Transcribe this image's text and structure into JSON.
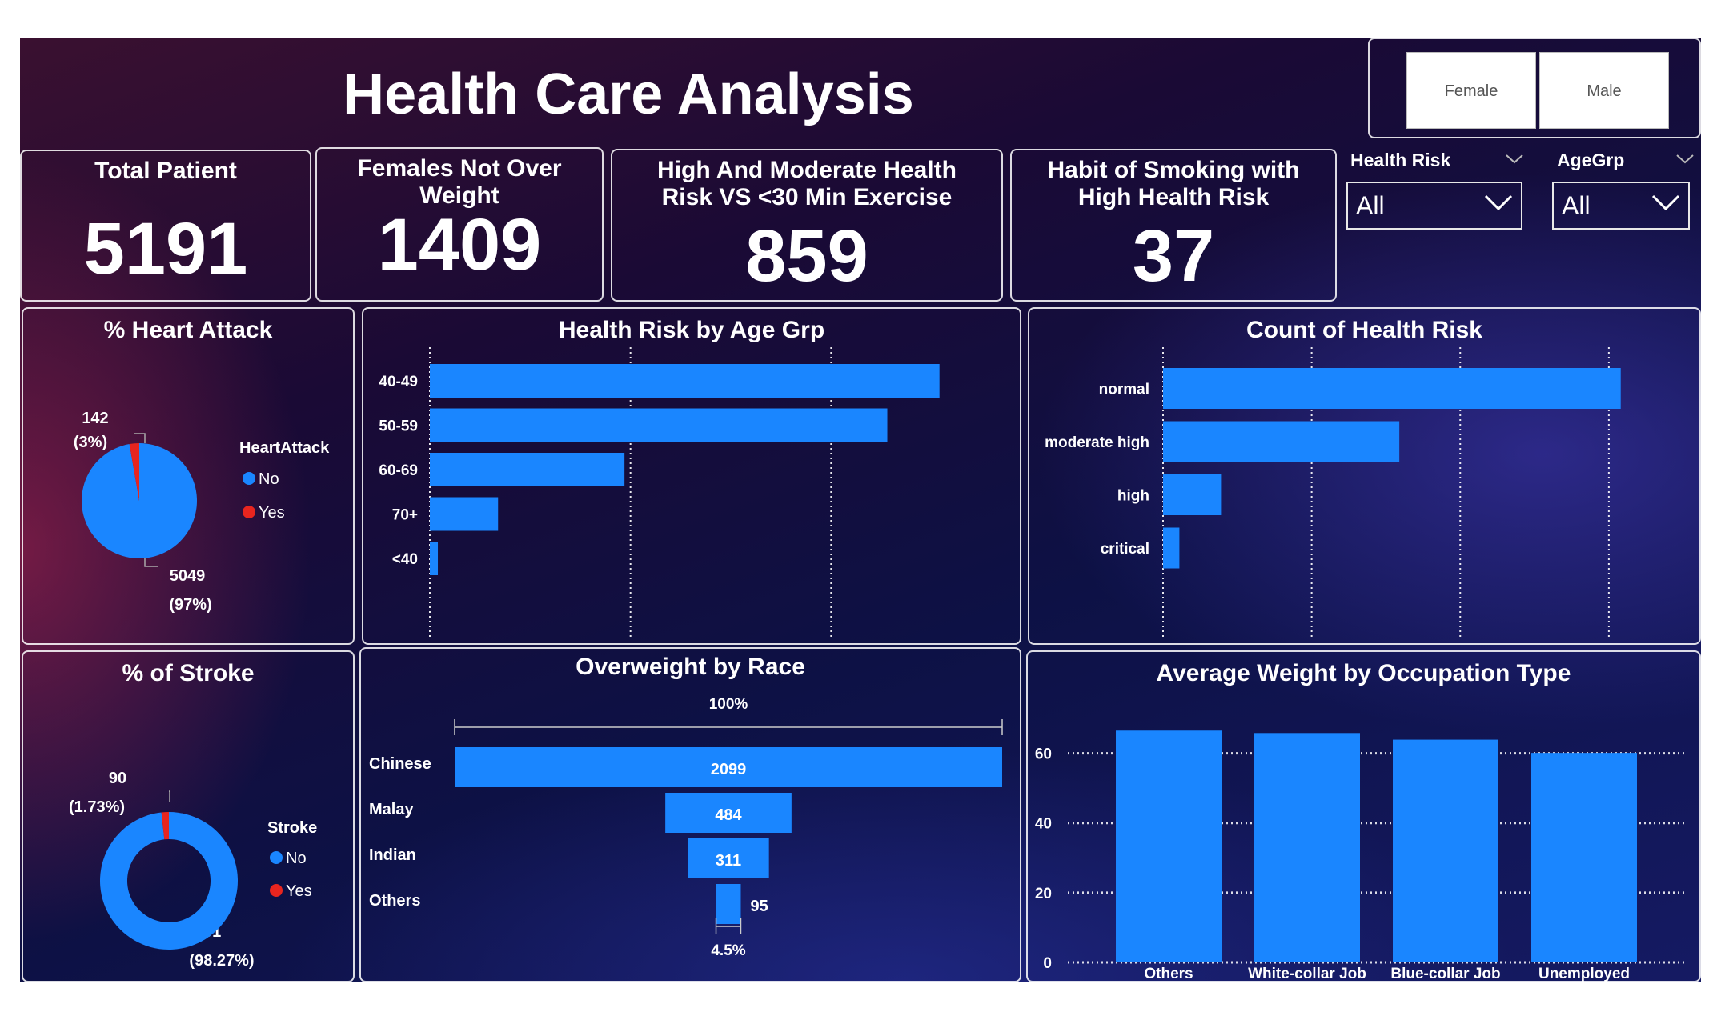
{
  "title": "Health Care Analysis",
  "gender_toggle": [
    "Female",
    "Male"
  ],
  "slicers": {
    "health_risk": {
      "label": "Health Risk",
      "value": "All"
    },
    "age_grp": {
      "label": "AgeGrp",
      "value": "All"
    }
  },
  "kpis": [
    {
      "title": "Total Patient",
      "value": "5191"
    },
    {
      "title": "Females Not Over Weight",
      "value": "1409"
    },
    {
      "title": "High And Moderate Health Risk VS <30 Min Exercise",
      "value": "859"
    },
    {
      "title": "Habit of Smoking with High Health Risk",
      "value": "37"
    }
  ],
  "colors": {
    "blue": "#1a86ff",
    "red": "#e8251f",
    "panel_border": "#ffffff"
  },
  "chart_data": [
    {
      "type": "pie",
      "title": "% Heart Attack",
      "legend_title": "HeartAttack",
      "legend_position": "right",
      "slices": [
        {
          "label": "No",
          "value": 5049,
          "pct_label": "(97%)"
        },
        {
          "label": "Yes",
          "value": 142,
          "pct_label": "(3%)"
        }
      ]
    },
    {
      "type": "bar",
      "orientation": "horizontal",
      "title": "Health Risk by Age Grp",
      "categories": [
        "40-49",
        "50-59",
        "60-69",
        "70+",
        "<40"
      ],
      "values": [
        1270,
        1140,
        485,
        170,
        20
      ],
      "xlim": [
        0,
        1500
      ],
      "xticks": [
        "0",
        "500",
        "1,000"
      ],
      "grid": true
    },
    {
      "type": "bar",
      "orientation": "horizontal",
      "title": "Count of Health Risk",
      "categories": [
        "normal",
        "moderate high",
        "high",
        "critical"
      ],
      "values": [
        3080,
        1590,
        390,
        110
      ],
      "xlim": [
        0,
        3200
      ],
      "xticks": [
        "0",
        "1,000",
        "2,000",
        "3,000"
      ],
      "grid": true
    },
    {
      "type": "pie",
      "title": "% of Stroke",
      "legend_title": "Stroke",
      "legend_position": "right",
      "donut": true,
      "slices": [
        {
          "label": "No",
          "value": 5101,
          "pct_label": "(98.27%)"
        },
        {
          "label": "Yes",
          "value": 90,
          "pct_label": "(1.73%)"
        }
      ]
    },
    {
      "type": "bar",
      "subtype": "funnel",
      "title": "Overweight by Race",
      "categories": [
        "Chinese",
        "Malay",
        "Indian",
        "Others"
      ],
      "values": [
        2099,
        484,
        311,
        95
      ],
      "top_pct_label": "100%",
      "bottom_pct_label": "4.5%"
    },
    {
      "type": "bar",
      "title": "Average Weight by Occupation Type",
      "categories": [
        "Others",
        "White-collar Job",
        "Blue-collar Job",
        "Unemployed"
      ],
      "values": [
        66.5,
        65.8,
        63.9,
        60.1
      ],
      "ylim": [
        0,
        70
      ],
      "yticks": [
        "0",
        "20",
        "40",
        "60"
      ],
      "grid": true
    }
  ]
}
